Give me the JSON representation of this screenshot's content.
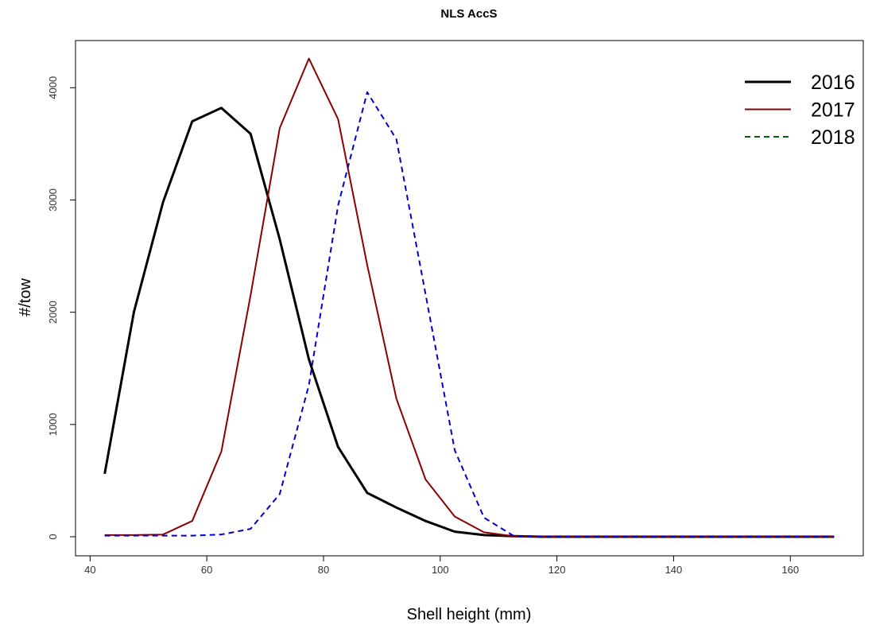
{
  "chart_data": {
    "type": "line",
    "title": "NLS AccS",
    "x_label": "Shell height (mm)",
    "y_label": "#/tow",
    "x": [
      42.5,
      47.5,
      52.5,
      57.5,
      62.5,
      67.5,
      72.5,
      77.5,
      82.5,
      87.5,
      92.5,
      97.5,
      102.5,
      107.5,
      112.5,
      117.5,
      122.5,
      127.5,
      132.5,
      137.5,
      142.5,
      147.5,
      152.5,
      157.5,
      162.5,
      167.5
    ],
    "series": [
      {
        "name": "2016",
        "color": "#000000",
        "legend_color": "#000000",
        "line_width": 3,
        "dashed": false,
        "values": [
          560,
          2000,
          2980,
          3700,
          3820,
          3590,
          2650,
          1580,
          800,
          390,
          260,
          140,
          45,
          15,
          5,
          0,
          0,
          0,
          0,
          0,
          0,
          0,
          0,
          0,
          0,
          0
        ]
      },
      {
        "name": "2017",
        "color": "#8b0000",
        "legend_color": "#8b0000",
        "line_width": 2,
        "dashed": false,
        "values": [
          15,
          15,
          20,
          140,
          760,
          2150,
          3640,
          4260,
          3720,
          2420,
          1230,
          510,
          180,
          40,
          5,
          0,
          0,
          0,
          0,
          0,
          0,
          0,
          0,
          0,
          0,
          0
        ]
      },
      {
        "name": "2018",
        "color": "#0000cd",
        "legend_color": "#006400",
        "line_width": 2,
        "dashed": true,
        "values": [
          10,
          10,
          10,
          10,
          20,
          70,
          380,
          1350,
          2950,
          3960,
          3540,
          2160,
          770,
          170,
          10,
          0,
          0,
          0,
          0,
          0,
          0,
          0,
          0,
          0,
          0,
          0
        ]
      }
    ],
    "xlim": [
      37.5,
      172.5
    ],
    "ylim": [
      -170,
      4420
    ],
    "xticks": [
      40,
      60,
      80,
      100,
      120,
      140,
      160
    ],
    "yticks": [
      0,
      1000,
      2000,
      3000,
      4000
    ],
    "legend": "top-right"
  }
}
